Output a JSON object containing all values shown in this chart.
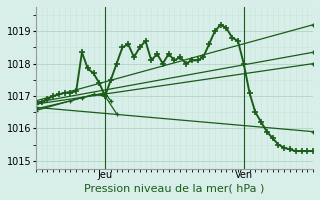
{
  "bg_color": "#d8eee8",
  "grid_major_color": "#b8d8cc",
  "grid_minor_color": "#c8e4da",
  "line_color": "#1a5c1a",
  "ylim": [
    1014.75,
    1019.75
  ],
  "yticks": [
    1015,
    1016,
    1017,
    1018,
    1019
  ],
  "xlim": [
    0,
    48
  ],
  "jeu_x": 12,
  "ven_x": 36,
  "xlabel": "Pression niveau de la mer( hPa )",
  "main_x": [
    0,
    1,
    2,
    3,
    4,
    5,
    6,
    7,
    8,
    9,
    10,
    11,
    12,
    13,
    14,
    15,
    16,
    17,
    18,
    19,
    20,
    21,
    22,
    23,
    24,
    25,
    26,
    27,
    28,
    29,
    30,
    31,
    32,
    33,
    34,
    35,
    36,
    37,
    38,
    39,
    40,
    41,
    42,
    43,
    44,
    45,
    46,
    47,
    48
  ],
  "main_y": [
    1016.75,
    1016.8,
    1016.9,
    1017.0,
    1017.05,
    1017.1,
    1017.1,
    1017.15,
    1018.35,
    1017.85,
    1017.7,
    1017.4,
    1017.0,
    1017.5,
    1018.0,
    1018.5,
    1018.6,
    1018.2,
    1018.5,
    1018.7,
    1018.1,
    1018.3,
    1018.0,
    1018.3,
    1018.1,
    1018.2,
    1018.0,
    1018.1,
    1018.1,
    1018.2,
    1018.6,
    1019.0,
    1019.2,
    1019.1,
    1018.8,
    1018.7,
    1018.0,
    1017.1,
    1016.5,
    1016.2,
    1015.9,
    1015.7,
    1015.5,
    1015.4,
    1015.35,
    1015.3,
    1015.3,
    1015.3,
    1015.3
  ],
  "fan_lines": [
    {
      "x": [
        0,
        48
      ],
      "y": [
        1016.85,
        1019.2
      ]
    },
    {
      "x": [
        0,
        48
      ],
      "y": [
        1016.8,
        1018.35
      ]
    },
    {
      "x": [
        0,
        48
      ],
      "y": [
        1016.75,
        1018.0
      ]
    },
    {
      "x": [
        0,
        48
      ],
      "y": [
        1016.65,
        1015.9
      ]
    }
  ],
  "short_lines": [
    {
      "x": [
        0,
        6,
        10,
        12,
        14
      ],
      "y": [
        1016.6,
        1016.85,
        1017.05,
        1017.0,
        1016.45
      ]
    },
    {
      "x": [
        0,
        8,
        12,
        13
      ],
      "y": [
        1016.55,
        1016.95,
        1017.1,
        1016.85
      ]
    }
  ]
}
